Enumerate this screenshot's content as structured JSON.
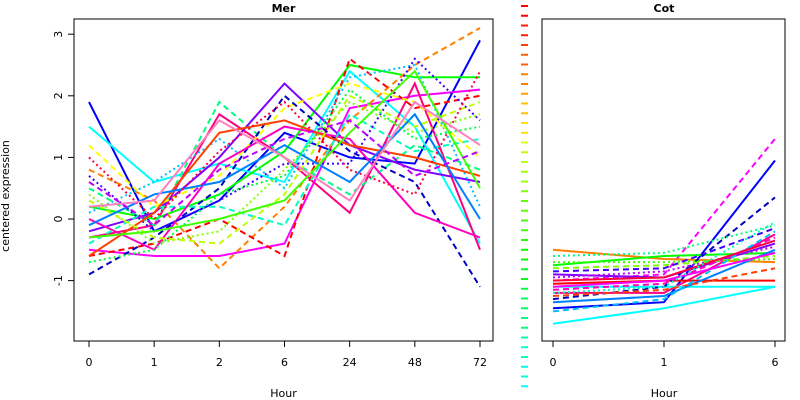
{
  "chart_data": [
    {
      "title": "Mer",
      "type": "line",
      "xlabel": "Hour",
      "ylabel": "centered expression",
      "categories": [
        "0",
        "1",
        "2",
        "6",
        "24",
        "48",
        "72"
      ],
      "y_ticks": [
        -1,
        0,
        1,
        2,
        3
      ],
      "ylim": [
        -1.9,
        3.3
      ],
      "legend": "none",
      "series": [
        {
          "color": "#0000ff",
          "dash": "solid",
          "values": [
            1.9,
            -0.2,
            0.3,
            1.4,
            1.0,
            0.9,
            2.9
          ]
        },
        {
          "color": "#ff00ff",
          "dash": "solid",
          "values": [
            -0.5,
            -0.6,
            -0.6,
            -0.4,
            1.8,
            2.0,
            2.1
          ]
        },
        {
          "color": "#00ffff",
          "dash": "solid",
          "values": [
            1.5,
            0.6,
            0.9,
            0.6,
            2.4,
            1.5,
            -0.4
          ]
        },
        {
          "color": "#ff0080",
          "dash": "solid",
          "values": [
            -0.3,
            -0.1,
            1.7,
            1.0,
            0.1,
            2.2,
            -0.5
          ]
        },
        {
          "color": "#00ff00",
          "dash": "solid",
          "values": [
            0.2,
            0.0,
            0.4,
            1.1,
            2.5,
            2.3,
            2.3
          ]
        },
        {
          "color": "#ff8000",
          "dash": "dashed",
          "values": [
            0.8,
            0.3,
            -0.8,
            0.2,
            1.6,
            2.5,
            3.1
          ]
        },
        {
          "color": "#ff0000",
          "dash": "dashed",
          "values": [
            -0.6,
            -0.4,
            0.0,
            -0.6,
            2.6,
            1.8,
            2.0
          ]
        },
        {
          "color": "#00ff80",
          "dash": "dashed",
          "values": [
            0.5,
            -0.1,
            1.9,
            1.0,
            0.4,
            1.2,
            0.8
          ]
        },
        {
          "color": "#8000ff",
          "dash": "solid",
          "values": [
            -0.2,
            0.1,
            1.0,
            2.2,
            1.2,
            0.8,
            0.6
          ]
        },
        {
          "color": "#00c0ff",
          "dash": "dotted",
          "values": [
            0.1,
            0.6,
            1.3,
            0.5,
            2.3,
            2.5,
            0.2
          ]
        },
        {
          "color": "#ffff00",
          "dash": "dashed",
          "values": [
            1.2,
            0.2,
            0.7,
            1.8,
            2.2,
            1.9,
            1.0
          ]
        },
        {
          "color": "#0000c0",
          "dash": "dashed",
          "values": [
            -0.9,
            -0.3,
            0.5,
            2.0,
            1.1,
            0.6,
            -1.1
          ]
        },
        {
          "color": "#80ff00",
          "dash": "dotted",
          "values": [
            0.4,
            -0.4,
            -0.2,
            0.8,
            1.9,
            1.4,
            1.7
          ]
        },
        {
          "color": "#ff00c0",
          "dash": "solid",
          "values": [
            0.0,
            -0.5,
            0.9,
            1.5,
            1.3,
            0.1,
            -0.3
          ]
        },
        {
          "color": "#00ffc0",
          "dash": "dashed",
          "values": [
            -0.4,
            0.2,
            0.2,
            -0.1,
            1.7,
            1.1,
            1.3
          ]
        },
        {
          "color": "#4000ff",
          "dash": "dotted",
          "values": [
            0.7,
            -0.2,
            0.3,
            0.9,
            0.9,
            2.6,
            1.6
          ]
        },
        {
          "color": "#ff4000",
          "dash": "solid",
          "values": [
            -0.6,
            0.1,
            1.4,
            1.6,
            1.2,
            1.0,
            0.7
          ]
        },
        {
          "color": "#c0ff00",
          "dash": "dashed",
          "values": [
            0.3,
            -0.3,
            -0.4,
            0.4,
            2.0,
            1.5,
            1.9
          ]
        },
        {
          "color": "#0080ff",
          "dash": "solid",
          "values": [
            -0.1,
            0.4,
            0.6,
            1.2,
            0.6,
            1.7,
            0.0
          ]
        },
        {
          "color": "#ff0040",
          "dash": "dotted",
          "values": [
            1.0,
            0.0,
            1.1,
            1.9,
            0.8,
            0.4,
            2.4
          ]
        },
        {
          "color": "#40ff00",
          "dash": "solid",
          "values": [
            -0.3,
            -0.2,
            0.0,
            0.3,
            1.4,
            2.4,
            0.5
          ]
        },
        {
          "color": "#c000ff",
          "dash": "dashed",
          "values": [
            0.6,
            -0.1,
            0.8,
            1.3,
            1.6,
            0.7,
            1.1
          ]
        },
        {
          "color": "#00ff40",
          "dash": "dotted",
          "values": [
            -0.7,
            -0.5,
            0.4,
            0.7,
            2.1,
            1.3,
            1.5
          ]
        },
        {
          "color": "#ff80c0",
          "dash": "solid",
          "values": [
            0.2,
            0.3,
            1.6,
            1.0,
            0.3,
            1.9,
            1.2
          ]
        }
      ]
    },
    {
      "title": "Cot",
      "type": "line",
      "xlabel": "Hour",
      "ylabel": "",
      "categories": [
        "0",
        "1",
        "6"
      ],
      "ylim": [
        -1.9,
        3.3
      ],
      "legend": "none",
      "series": [
        {
          "color": "#00ffff",
          "dash": "solid",
          "values": [
            -1.7,
            -1.45,
            -1.1
          ]
        },
        {
          "color": "#0000ff",
          "dash": "solid",
          "values": [
            -1.45,
            -1.35,
            0.95
          ]
        },
        {
          "color": "#ff00ff",
          "dash": "dashed",
          "values": [
            -1.0,
            -0.9,
            1.3
          ]
        },
        {
          "color": "#ff8000",
          "dash": "solid",
          "values": [
            -0.5,
            -0.65,
            -0.7
          ]
        },
        {
          "color": "#ff0080",
          "dash": "solid",
          "values": [
            -1.2,
            -1.2,
            -0.25
          ]
        },
        {
          "color": "#00ff00",
          "dash": "solid",
          "values": [
            -0.75,
            -0.6,
            -0.55
          ]
        },
        {
          "color": "#00ffff",
          "dash": "solid",
          "values": [
            -1.1,
            -1.1,
            -1.1
          ]
        },
        {
          "color": "#ff0000",
          "dash": "solid",
          "values": [
            -1.05,
            -1.0,
            -1.0
          ]
        },
        {
          "color": "#0000c0",
          "dash": "dashed",
          "values": [
            -1.3,
            -1.1,
            0.35
          ]
        },
        {
          "color": "#8000ff",
          "dash": "solid",
          "values": [
            -0.9,
            -0.95,
            -0.4
          ]
        },
        {
          "color": "#ff00c0",
          "dash": "dashed",
          "values": [
            -1.15,
            -1.05,
            -0.3
          ]
        },
        {
          "color": "#00ff80",
          "dash": "dotted",
          "values": [
            -0.6,
            -0.55,
            -0.1
          ]
        },
        {
          "color": "#80ff00",
          "dash": "dashed",
          "values": [
            -0.8,
            -0.75,
            -0.6
          ]
        },
        {
          "color": "#0080ff",
          "dash": "solid",
          "values": [
            -1.35,
            -1.25,
            -0.5
          ]
        },
        {
          "color": "#ff4000",
          "dash": "dashed",
          "values": [
            -1.25,
            -1.15,
            -0.8
          ]
        },
        {
          "color": "#c000ff",
          "dash": "dotted",
          "values": [
            -0.95,
            -0.85,
            -0.45
          ]
        },
        {
          "color": "#00c0ff",
          "dash": "dashed",
          "values": [
            -1.5,
            -1.3,
            -0.2
          ]
        },
        {
          "color": "#40ff00",
          "dash": "dotted",
          "values": [
            -0.7,
            -0.7,
            -0.65
          ]
        },
        {
          "color": "#ff0040",
          "dash": "solid",
          "values": [
            -1.0,
            -0.95,
            -0.35
          ]
        },
        {
          "color": "#4000ff",
          "dash": "dashed",
          "values": [
            -0.85,
            -0.8,
            -0.15
          ]
        },
        {
          "color": "#ff00ff",
          "dash": "solid",
          "values": [
            -1.1,
            -1.0,
            -0.55
          ]
        },
        {
          "color": "#00ffc0",
          "dash": "dotted",
          "values": [
            -1.2,
            -1.1,
            -0.05
          ]
        }
      ]
    }
  ],
  "separator_palette": [
    "#ff0000",
    "#ff2000",
    "#ff4000",
    "#ff6000",
    "#ff8000",
    "#ffa000",
    "#ffc000",
    "#ffe000",
    "#e0ff00",
    "#c0ff00",
    "#a0ff00",
    "#80ff00",
    "#60ff00",
    "#40ff00",
    "#20ff00",
    "#00ff00",
    "#00ff20",
    "#00ff40",
    "#00ff60",
    "#00ff80",
    "#00ffa0",
    "#00ffc0",
    "#00ffe0",
    "#00ffff"
  ]
}
